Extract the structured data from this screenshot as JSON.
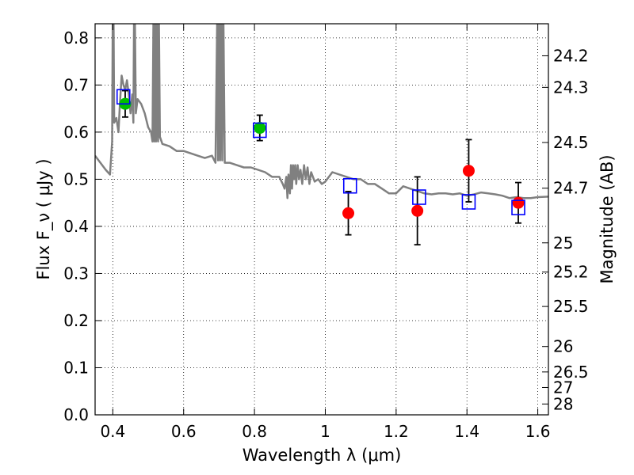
{
  "chart_data": {
    "type": "scatter",
    "xlabel": "Wavelength  λ (μm)",
    "ylabel_left": "Flux  F_ν  ( μJy )",
    "ylabel_right": "Magnitude (AB)",
    "xlim": [
      0.35,
      1.63
    ],
    "ylim": [
      0.0,
      0.83
    ],
    "grid": true,
    "x_ticks": [
      0.4,
      0.6,
      0.8,
      1.0,
      1.2,
      1.4,
      1.6
    ],
    "x_tick_labels": [
      "0.4",
      "0.6",
      "0.8",
      "1",
      "1.2",
      "1.4",
      "1.6"
    ],
    "y_ticks": [
      0.0,
      0.1,
      0.2,
      0.3,
      0.4,
      0.5,
      0.6,
      0.7,
      0.8
    ],
    "y_tick_labels": [
      "0.0",
      "0.1",
      "0.2",
      "0.3",
      "0.4",
      "0.5",
      "0.6",
      "0.7",
      "0.8"
    ],
    "right_ticks": [
      {
        "label": "24.2",
        "flux": 0.762
      },
      {
        "label": "24.3",
        "flux": 0.695
      },
      {
        "label": "24.5",
        "flux": 0.578
      },
      {
        "label": "24.7",
        "flux": 0.481
      },
      {
        "label": "25",
        "flux": 0.365
      },
      {
        "label": "25.2",
        "flux": 0.303
      },
      {
        "label": "25.5",
        "flux": 0.23
      },
      {
        "label": "26",
        "flux": 0.145
      },
      {
        "label": "26.5",
        "flux": 0.091
      },
      {
        "label": "27",
        "flux": 0.058
      },
      {
        "label": "28",
        "flux": 0.023
      }
    ],
    "model_spectrum": {
      "color": "#808080",
      "points": [
        [
          0.35,
          0.55
        ],
        [
          0.365,
          0.535
        ],
        [
          0.38,
          0.52
        ],
        [
          0.392,
          0.51
        ],
        [
          0.398,
          0.58
        ],
        [
          0.4,
          0.86
        ],
        [
          0.402,
          0.86
        ],
        [
          0.404,
          0.62
        ],
        [
          0.41,
          0.63
        ],
        [
          0.416,
          0.6
        ],
        [
          0.42,
          0.66
        ],
        [
          0.425,
          0.72
        ],
        [
          0.43,
          0.7
        ],
        [
          0.435,
          0.69
        ],
        [
          0.44,
          0.71
        ],
        [
          0.445,
          0.68
        ],
        [
          0.45,
          0.64
        ],
        [
          0.455,
          0.68
        ],
        [
          0.458,
          0.62
        ],
        [
          0.46,
          0.86
        ],
        [
          0.462,
          0.86
        ],
        [
          0.465,
          0.64
        ],
        [
          0.47,
          0.67
        ],
        [
          0.48,
          0.66
        ],
        [
          0.49,
          0.64
        ],
        [
          0.5,
          0.61
        ],
        [
          0.508,
          0.6
        ],
        [
          0.512,
          0.58
        ],
        [
          0.515,
          0.86
        ],
        [
          0.517,
          0.58
        ],
        [
          0.52,
          0.86
        ],
        [
          0.522,
          0.58
        ],
        [
          0.525,
          0.86
        ],
        [
          0.528,
          0.58
        ],
        [
          0.53,
          0.86
        ],
        [
          0.533,
          0.59
        ],
        [
          0.54,
          0.575
        ],
        [
          0.56,
          0.57
        ],
        [
          0.58,
          0.56
        ],
        [
          0.6,
          0.56
        ],
        [
          0.62,
          0.555
        ],
        [
          0.64,
          0.55
        ],
        [
          0.66,
          0.545
        ],
        [
          0.68,
          0.55
        ],
        [
          0.69,
          0.535
        ],
        [
          0.695,
          0.86
        ],
        [
          0.697,
          0.54
        ],
        [
          0.7,
          0.86
        ],
        [
          0.703,
          0.54
        ],
        [
          0.706,
          0.86
        ],
        [
          0.709,
          0.54
        ],
        [
          0.712,
          0.86
        ],
        [
          0.716,
          0.535
        ],
        [
          0.73,
          0.535
        ],
        [
          0.75,
          0.53
        ],
        [
          0.77,
          0.525
        ],
        [
          0.79,
          0.525
        ],
        [
          0.81,
          0.52
        ],
        [
          0.83,
          0.515
        ],
        [
          0.85,
          0.505
        ],
        [
          0.87,
          0.505
        ],
        [
          0.88,
          0.49
        ],
        [
          0.885,
          0.48
        ],
        [
          0.89,
          0.505
        ],
        [
          0.893,
          0.46
        ],
        [
          0.896,
          0.51
        ],
        [
          0.9,
          0.47
        ],
        [
          0.903,
          0.53
        ],
        [
          0.906,
          0.48
        ],
        [
          0.909,
          0.53
        ],
        [
          0.912,
          0.5
        ],
        [
          0.915,
          0.53
        ],
        [
          0.918,
          0.49
        ],
        [
          0.922,
          0.53
        ],
        [
          0.926,
          0.5
        ],
        [
          0.93,
          0.52
        ],
        [
          0.935,
          0.49
        ],
        [
          0.94,
          0.53
        ],
        [
          0.945,
          0.5
        ],
        [
          0.95,
          0.525
        ],
        [
          0.955,
          0.49
        ],
        [
          0.96,
          0.515
        ],
        [
          0.97,
          0.495
        ],
        [
          0.98,
          0.5
        ],
        [
          0.99,
          0.49
        ],
        [
          1.0,
          0.495
        ],
        [
          1.02,
          0.515
        ],
        [
          1.04,
          0.51
        ],
        [
          1.06,
          0.505
        ],
        [
          1.08,
          0.5
        ],
        [
          1.1,
          0.5
        ],
        [
          1.12,
          0.49
        ],
        [
          1.14,
          0.49
        ],
        [
          1.16,
          0.48
        ],
        [
          1.18,
          0.47
        ],
        [
          1.2,
          0.47
        ],
        [
          1.22,
          0.485
        ],
        [
          1.24,
          0.48
        ],
        [
          1.26,
          0.475
        ],
        [
          1.28,
          0.47
        ],
        [
          1.3,
          0.468
        ],
        [
          1.32,
          0.47
        ],
        [
          1.34,
          0.47
        ],
        [
          1.36,
          0.468
        ],
        [
          1.38,
          0.47
        ],
        [
          1.4,
          0.465
        ],
        [
          1.42,
          0.468
        ],
        [
          1.44,
          0.472
        ],
        [
          1.46,
          0.47
        ],
        [
          1.48,
          0.468
        ],
        [
          1.5,
          0.465
        ],
        [
          1.52,
          0.46
        ],
        [
          1.54,
          0.462
        ],
        [
          1.56,
          0.46
        ],
        [
          1.58,
          0.46
        ],
        [
          1.6,
          0.462
        ],
        [
          1.63,
          0.463
        ]
      ]
    },
    "series": [
      {
        "marker": "circle",
        "color": "#00c000",
        "points": [
          {
            "x": 0.435,
            "y": 0.66,
            "yerr": 0.028
          },
          {
            "x": 0.815,
            "y": 0.609,
            "yerr": 0.027
          }
        ]
      },
      {
        "marker": "circle",
        "color": "#ff0000",
        "points": [
          {
            "x": 1.065,
            "y": 0.428,
            "yerr": 0.046
          },
          {
            "x": 1.26,
            "y": 0.433,
            "yerr": 0.072
          },
          {
            "x": 1.405,
            "y": 0.518,
            "yerr": 0.066
          },
          {
            "x": 1.545,
            "y": 0.45,
            "yerr": 0.043
          }
        ]
      },
      {
        "marker": "open-square",
        "color": "#0000ff",
        "points": [
          {
            "x": 0.43,
            "y": 0.675
          },
          {
            "x": 0.815,
            "y": 0.604
          },
          {
            "x": 1.07,
            "y": 0.486
          },
          {
            "x": 1.265,
            "y": 0.462
          },
          {
            "x": 1.405,
            "y": 0.452
          },
          {
            "x": 1.545,
            "y": 0.44
          }
        ]
      }
    ]
  }
}
